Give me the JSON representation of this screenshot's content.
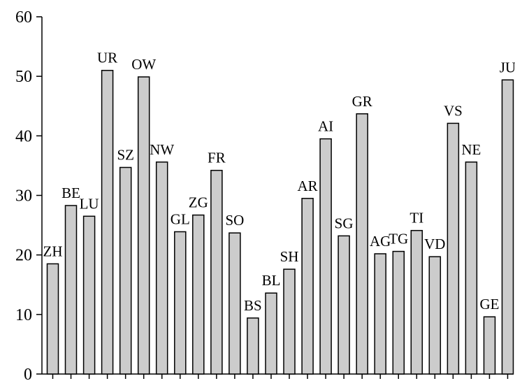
{
  "chart_data": {
    "type": "bar",
    "title": "",
    "xlabel": "",
    "ylabel": "",
    "ylim": [
      0,
      60
    ],
    "yticks": [
      0,
      10,
      20,
      30,
      40,
      50,
      60
    ],
    "grid": false,
    "legend": "none",
    "bar_color": "#cccccc",
    "categories": [
      "ZH",
      "BE",
      "LU",
      "UR",
      "SZ",
      "OW",
      "NW",
      "GL",
      "ZG",
      "FR",
      "SO",
      "BS",
      "BL",
      "SH",
      "AR",
      "AI",
      "SG",
      "GR",
      "AG",
      "TG",
      "TI",
      "VD",
      "VS",
      "NE",
      "GE",
      "JU"
    ],
    "values": [
      18.5,
      28.3,
      26.5,
      51.0,
      34.7,
      49.9,
      35.6,
      23.9,
      26.7,
      34.2,
      23.7,
      9.4,
      13.6,
      17.6,
      29.5,
      39.5,
      23.2,
      43.7,
      20.2,
      20.6,
      24.1,
      19.7,
      42.1,
      35.6,
      9.6,
      49.4
    ]
  }
}
